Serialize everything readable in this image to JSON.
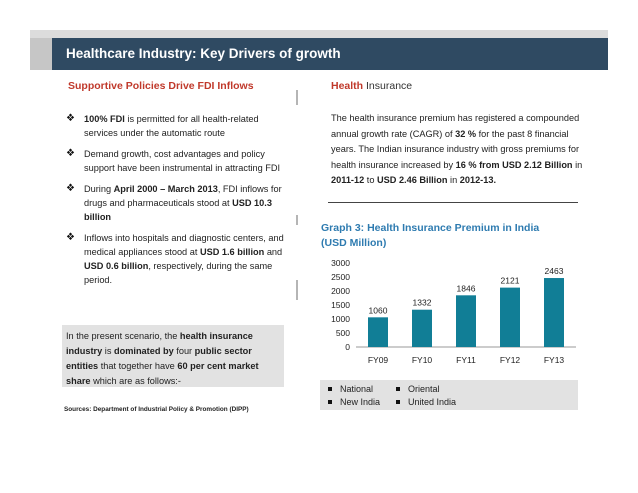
{
  "slide": {
    "title": "Healthcare Industry:  Key Drivers of growth"
  },
  "left": {
    "heading": "Supportive Policies Drive FDI Inflows",
    "bullets": [
      {
        "mark": "❖",
        "parts": [
          {
            "t": "100% FDI",
            "b": true
          },
          {
            "t": " is permitted for all health-related services under the automatic route",
            "b": false
          }
        ]
      },
      {
        "mark": "❖",
        "parts": [
          {
            "t": "Demand growth, cost advantages and policy support have been instrumental in attracting FDI",
            "b": false
          }
        ]
      },
      {
        "mark": "❖",
        "parts": [
          {
            "t": "During ",
            "b": false
          },
          {
            "t": "April 2000 – March 2013",
            "b": true
          },
          {
            "t": ", FDI inflows for drugs and pharmaceuticals stood at ",
            "b": false
          },
          {
            "t": "USD 10.3 billion",
            "b": true
          }
        ]
      },
      {
        "mark": "❖",
        "parts": [
          {
            "t": "Inflows into hospitals and diagnostic centers, and medical appliances stood at ",
            "b": false
          },
          {
            "t": "USD 1.6 billion",
            "b": true
          },
          {
            "t": " and ",
            "b": false
          },
          {
            "t": "USD 0.6 billion",
            "b": true
          },
          {
            "t": ", respectively, during the same period.",
            "b": false
          }
        ]
      }
    ],
    "scenario": [
      {
        "t": "In the present scenario, the ",
        "b": false
      },
      {
        "t": "health insurance industry",
        "b": true
      },
      {
        "t": " is ",
        "b": false
      },
      {
        "t": "dominated by",
        "b": true
      },
      {
        "t": " four ",
        "b": false
      },
      {
        "t": "public sector entities",
        "b": true
      },
      {
        "t": " that together have ",
        "b": false
      },
      {
        "t": "60 per cent market share",
        "b": true
      },
      {
        "t": " which are as follows:-",
        "b": false
      }
    ],
    "source": "Sources: Department of Industrial Policy & Promotion (DIPP)"
  },
  "right": {
    "heading_bold": "Health",
    "heading_rest": " Insurance",
    "body": [
      {
        "t": "The health insurance premium has registered a compounded annual growth rate (CAGR) of ",
        "b": false
      },
      {
        "t": "32 %",
        "b": true
      },
      {
        "t": " for the past 8 financial years. The Indian insurance industry with gross premiums for health insurance increased by ",
        "b": false
      },
      {
        "t": "16 % from USD 2.12 Billion",
        "b": true
      },
      {
        "t": " in ",
        "b": false
      },
      {
        "t": "2011-12",
        "b": true
      },
      {
        "t": " to ",
        "b": false
      },
      {
        "t": "USD 2.46 Billion",
        "b": true
      },
      {
        "t": " in ",
        "b": false
      },
      {
        "t": "2012-13.",
        "b": true
      }
    ],
    "graph_title": "Graph 3: Health Insurance Premium in India (USD Million)",
    "legend": [
      "National",
      "New India",
      "Oriental",
      "United India"
    ]
  },
  "colors": {
    "bar": "#117e96",
    "title_bar": "#2f4a62",
    "heading_red": "#c0392b",
    "graph_title": "#2e7bb0"
  },
  "chart_data": {
    "type": "bar",
    "title": "Graph 3: Health Insurance Premium in India (USD Million)",
    "categories": [
      "FY09",
      "FY10",
      "FY11",
      "FY12",
      "FY13"
    ],
    "values": [
      1060,
      1332,
      1846,
      2121,
      2463
    ],
    "yticks": [
      0,
      500,
      1000,
      1500,
      2000,
      2500,
      3000
    ],
    "ylim": [
      0,
      3000
    ],
    "xlabel": "",
    "ylabel": "",
    "grid": false
  }
}
